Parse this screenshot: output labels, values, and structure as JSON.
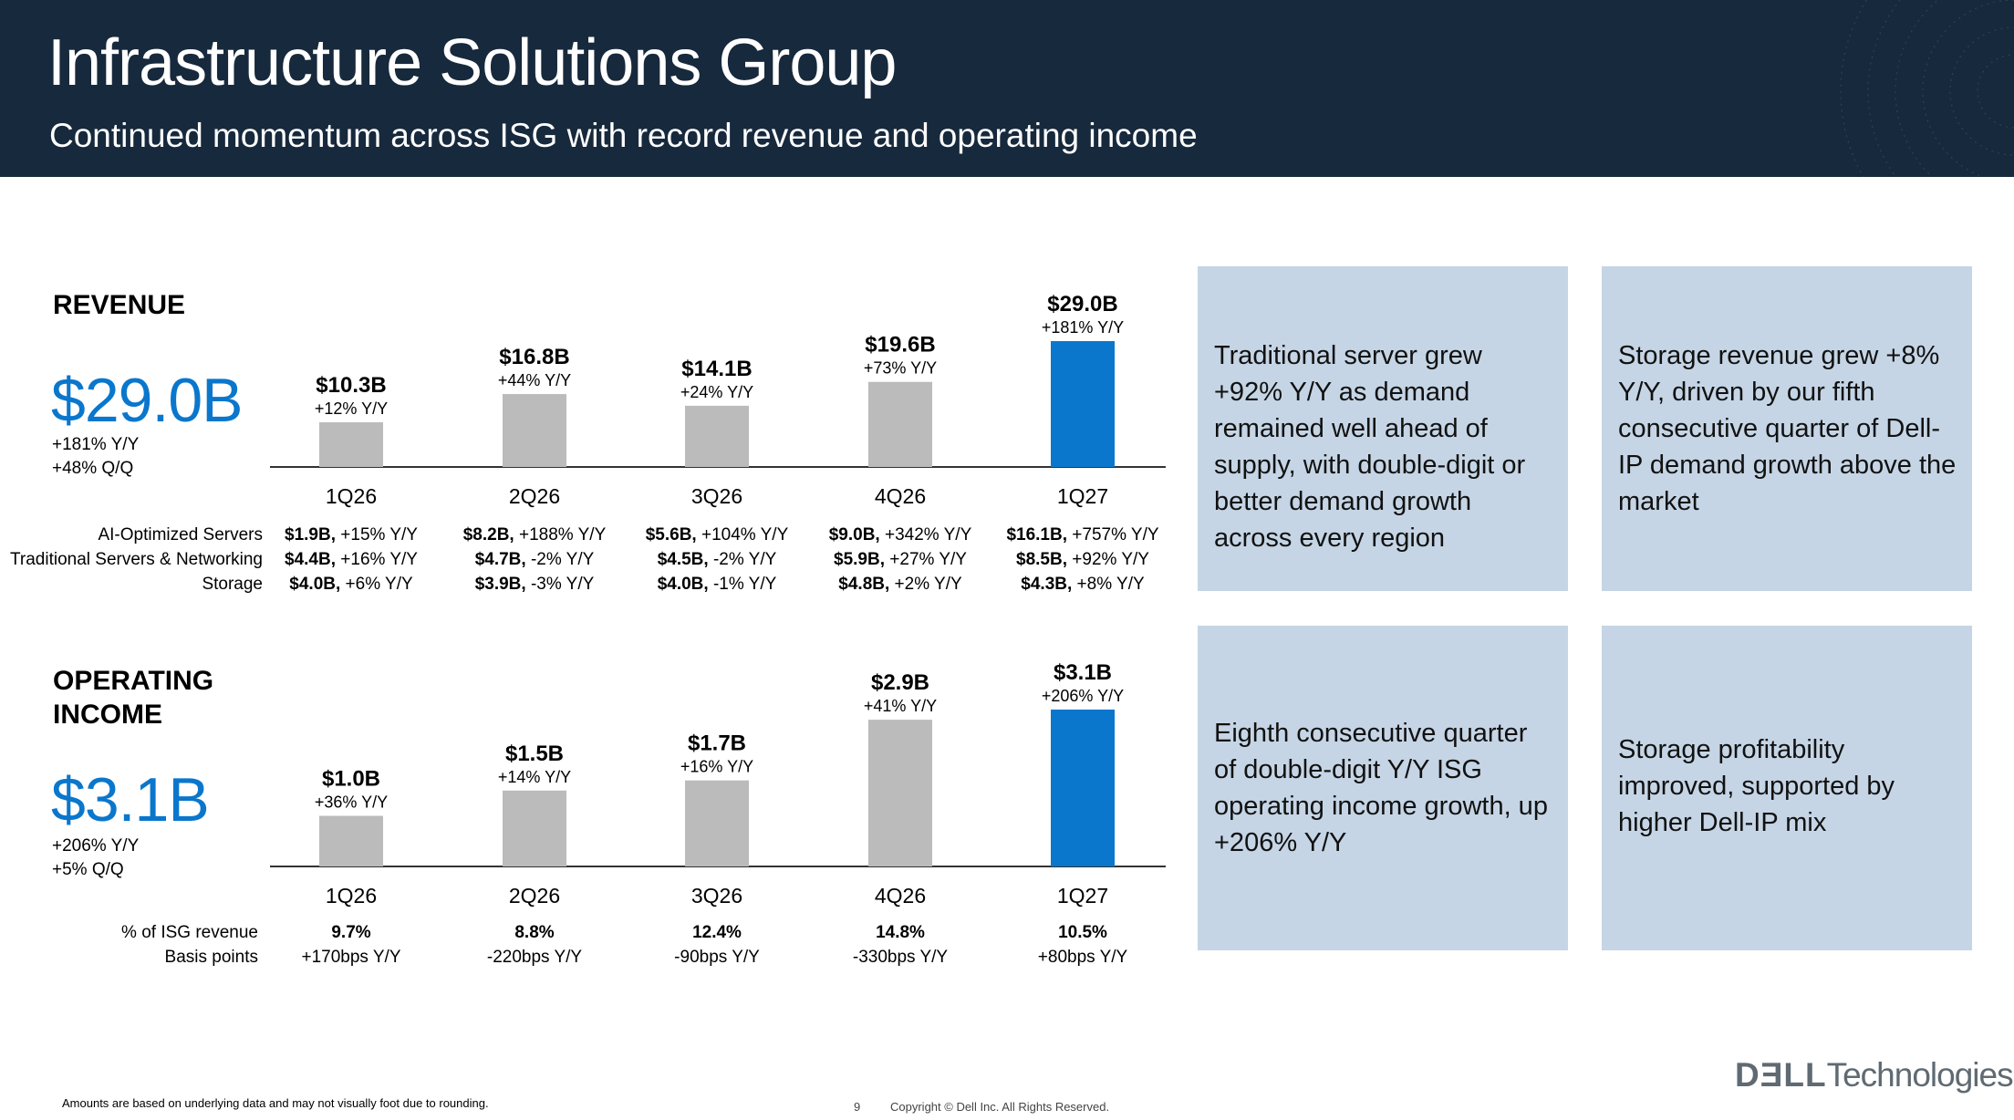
{
  "header": {
    "title": "Infrastructure Solutions Group",
    "subtitle": "Continued momentum across ISG with record revenue and operating income"
  },
  "colors": {
    "header_bg": "#17293c",
    "accent_blue": "#0a77cc",
    "bar_gray": "#bbbbbb",
    "bar_highlight": "#0a77cc",
    "card_bg": "#c5d5e5"
  },
  "revenue": {
    "label": "REVENUE",
    "value": "$29.0B",
    "yoy": "+181% Y/Y",
    "qoq": "+48% Q/Q",
    "breakdown_labels": [
      "AI-Optimized Servers",
      "Traditional Servers & Networking",
      "Storage"
    ],
    "breakdown": [
      [
        [
          "$1.9B,",
          "+15% Y/Y"
        ],
        [
          "$4.4B,",
          "+16% Y/Y"
        ],
        [
          "$4.0B,",
          "+6% Y/Y"
        ]
      ],
      [
        [
          "$8.2B,",
          "+188% Y/Y"
        ],
        [
          "$4.7B,",
          "-2% Y/Y"
        ],
        [
          "$3.9B,",
          "-3% Y/Y"
        ]
      ],
      [
        [
          "$5.6B,",
          "+104% Y/Y"
        ],
        [
          "$4.5B,",
          "-2% Y/Y"
        ],
        [
          "$4.0B,",
          "-1% Y/Y"
        ]
      ],
      [
        [
          "$9.0B,",
          "+342% Y/Y"
        ],
        [
          "$5.9B,",
          "+27% Y/Y"
        ],
        [
          "$4.8B,",
          "+2% Y/Y"
        ]
      ],
      [
        [
          "$16.1B,",
          "+757% Y/Y"
        ],
        [
          "$8.5B,",
          "+92% Y/Y"
        ],
        [
          "$4.3B,",
          "+8% Y/Y"
        ]
      ]
    ]
  },
  "operating_income": {
    "label_line1": "OPERATING",
    "label_line2": "INCOME",
    "value": "$3.1B",
    "yoy": "+206% Y/Y",
    "qoq": "+5% Q/Q",
    "metric_labels": [
      "% of ISG revenue",
      "Basis points"
    ],
    "metrics": [
      [
        "9.7%",
        "+170bps Y/Y"
      ],
      [
        "8.8%",
        "-220bps Y/Y"
      ],
      [
        "12.4%",
        "-90bps Y/Y"
      ],
      [
        "14.8%",
        "-330bps Y/Y"
      ],
      [
        "10.5%",
        "+80bps Y/Y"
      ]
    ]
  },
  "chart_data": [
    {
      "type": "bar",
      "categories": [
        "1Q26",
        "2Q26",
        "3Q26",
        "4Q26",
        "1Q27"
      ],
      "values": [
        10.3,
        16.8,
        14.1,
        19.6,
        29.0
      ],
      "value_labels": [
        "$10.3B",
        "$16.8B",
        "$14.1B",
        "$19.6B",
        "$29.0B"
      ],
      "growth_labels": [
        "+12% Y/Y",
        "+44% Y/Y",
        "+24% Y/Y",
        "+73% Y/Y",
        "+181% Y/Y"
      ],
      "highlight_index": 4,
      "title": "REVENUE",
      "ylim": [
        0,
        29.0
      ]
    },
    {
      "type": "bar",
      "categories": [
        "1Q26",
        "2Q26",
        "3Q26",
        "4Q26",
        "1Q27"
      ],
      "values": [
        1.0,
        1.5,
        1.7,
        2.9,
        3.1
      ],
      "value_labels": [
        "$1.0B",
        "$1.5B",
        "$1.7B",
        "$2.9B",
        "$3.1B"
      ],
      "growth_labels": [
        "+36% Y/Y",
        "+14% Y/Y",
        "+16% Y/Y",
        "+41% Y/Y",
        "+206% Y/Y"
      ],
      "highlight_index": 4,
      "title": "OPERATING INCOME",
      "ylim": [
        0,
        3.1
      ]
    }
  ],
  "cards": [
    "Traditional server grew +92% Y/Y as demand remained well ahead of supply, with double-digit or better demand growth across every region",
    "Storage revenue grew +8% Y/Y, driven by our fifth consecutive quarter of Dell-IP demand growth above the market",
    "Eighth consecutive quarter of double-digit Y/Y ISG operating income growth, up +206% Y/Y",
    "Storage profitability improved, supported by higher Dell-IP mix"
  ],
  "footer": {
    "note": "Amounts are based on underlying data and may not visually foot due to rounding.",
    "page": "9",
    "copyright": "Copyright © Dell Inc. All Rights Reserved.",
    "logo_part1": "DƎLL",
    "logo_part2": "Technologies"
  }
}
